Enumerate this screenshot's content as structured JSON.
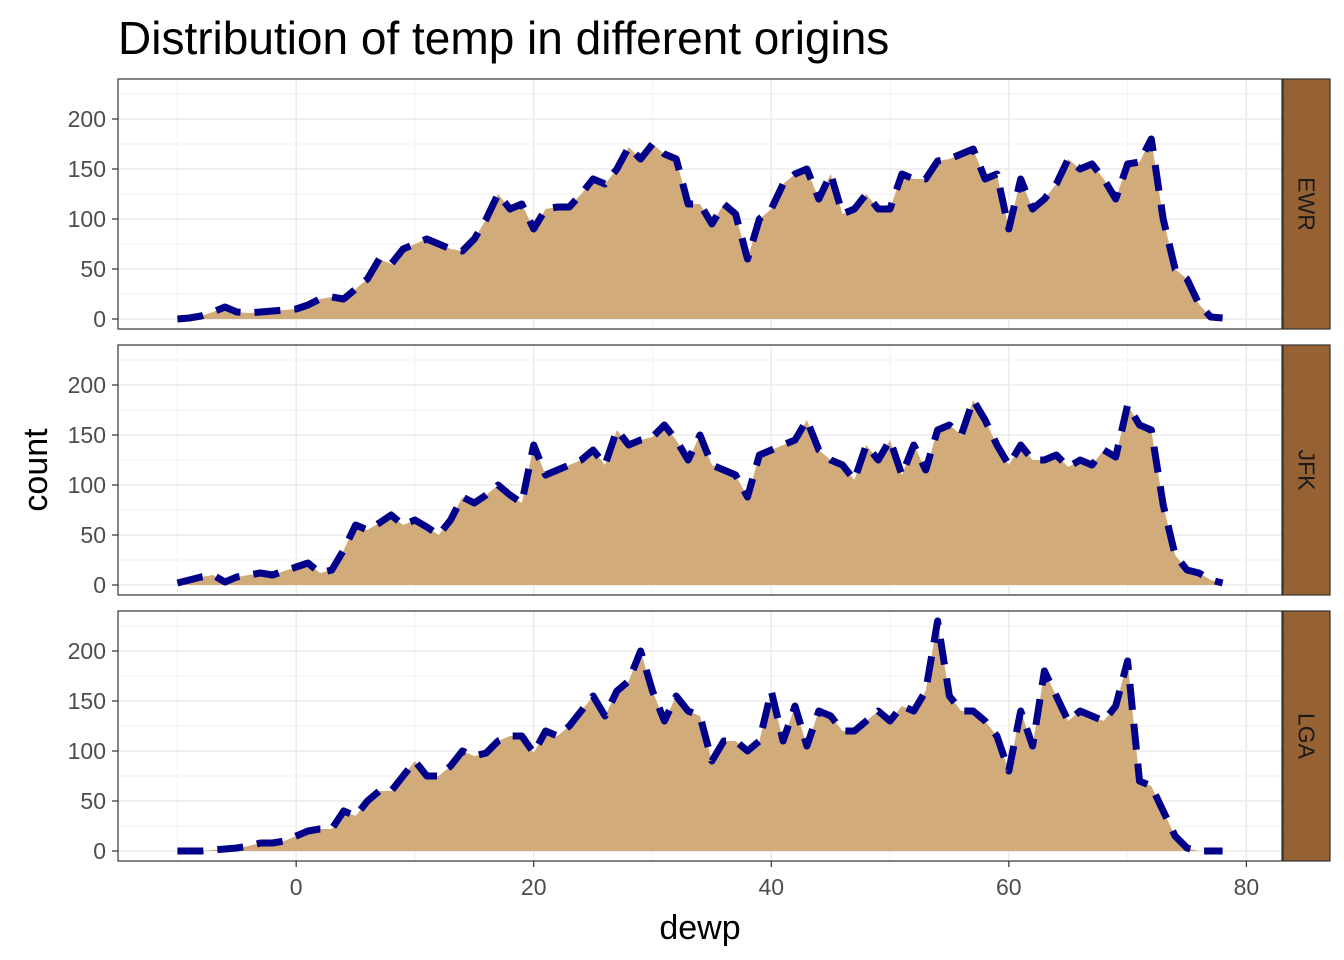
{
  "chart_data": {
    "type": "area",
    "title": "Distribution of temp in different origins",
    "xlabel": "dewp",
    "ylabel": "count",
    "xlim": [
      -15,
      83
    ],
    "ylim": [
      -10,
      240
    ],
    "x_ticks": [
      0,
      20,
      40,
      60,
      80
    ],
    "y_ticks": [
      0,
      50,
      100,
      150,
      200
    ],
    "grid": true,
    "facet_strip_color": "#966234",
    "fill_color": "#d2ab7a",
    "line_color": "#00008b",
    "line_style": "dashed",
    "panels": [
      {
        "name": "EWR",
        "x": [
          -10,
          -9,
          -8,
          -7,
          -6,
          -5,
          -4,
          -3,
          -2,
          -1,
          0,
          1,
          2,
          3,
          4,
          5,
          6,
          7,
          8,
          9,
          10,
          11,
          12,
          13,
          14,
          15,
          16,
          17,
          18,
          19,
          20,
          21,
          22,
          23,
          24,
          25,
          26,
          27,
          28,
          29,
          30,
          31,
          32,
          33,
          34,
          35,
          36,
          37,
          38,
          39,
          40,
          41,
          42,
          43,
          44,
          45,
          46,
          47,
          48,
          49,
          50,
          51,
          52,
          53,
          54,
          55,
          56,
          57,
          58,
          59,
          60,
          61,
          62,
          63,
          64,
          65,
          66,
          67,
          68,
          69,
          70,
          71,
          72,
          73,
          74,
          75,
          76,
          77,
          78
        ],
        "values": [
          0,
          1,
          3,
          7,
          12,
          7,
          6,
          7,
          8,
          9,
          10,
          14,
          20,
          22,
          20,
          30,
          40,
          60,
          55,
          70,
          75,
          80,
          75,
          70,
          68,
          80,
          100,
          125,
          110,
          115,
          90,
          110,
          112,
          112,
          125,
          140,
          135,
          150,
          172,
          160,
          175,
          165,
          160,
          115,
          115,
          95,
          115,
          105,
          60,
          100,
          110,
          135,
          145,
          150,
          120,
          145,
          105,
          110,
          125,
          110,
          110,
          145,
          140,
          140,
          158,
          160,
          165,
          170,
          140,
          145,
          90,
          140,
          110,
          120,
          135,
          160,
          150,
          155,
          140,
          120,
          155,
          157,
          180,
          100,
          50,
          40,
          15,
          2,
          1
        ]
      },
      {
        "name": "JFK",
        "x": [
          -10,
          -9,
          -8,
          -7,
          -6,
          -5,
          -4,
          -3,
          -2,
          -1,
          0,
          1,
          2,
          3,
          4,
          5,
          6,
          7,
          8,
          9,
          10,
          11,
          12,
          13,
          14,
          15,
          16,
          17,
          18,
          19,
          20,
          21,
          22,
          23,
          24,
          25,
          26,
          27,
          28,
          29,
          30,
          31,
          32,
          33,
          34,
          35,
          36,
          37,
          38,
          39,
          40,
          41,
          42,
          43,
          44,
          45,
          46,
          47,
          48,
          49,
          50,
          51,
          52,
          53,
          54,
          55,
          56,
          57,
          58,
          59,
          60,
          61,
          62,
          63,
          64,
          65,
          66,
          67,
          68,
          69,
          70,
          71,
          72,
          73,
          74,
          75,
          76,
          77,
          78
        ],
        "values": [
          2,
          5,
          8,
          10,
          3,
          8,
          10,
          12,
          10,
          14,
          18,
          22,
          12,
          15,
          35,
          60,
          55,
          62,
          70,
          60,
          65,
          58,
          50,
          65,
          88,
          82,
          90,
          100,
          90,
          82,
          140,
          110,
          115,
          120,
          125,
          135,
          120,
          155,
          140,
          145,
          148,
          160,
          145,
          125,
          150,
          120,
          115,
          110,
          88,
          130,
          135,
          140,
          145,
          165,
          135,
          125,
          120,
          105,
          140,
          125,
          145,
          110,
          140,
          115,
          155,
          160,
          150,
          185,
          165,
          140,
          120,
          140,
          125,
          125,
          130,
          118,
          125,
          120,
          135,
          128,
          180,
          160,
          155,
          80,
          30,
          15,
          12,
          5,
          2
        ]
      },
      {
        "name": "LGA",
        "x": [
          -10,
          -9,
          -8,
          -7,
          -6,
          -5,
          -4,
          -3,
          -2,
          -1,
          0,
          1,
          2,
          3,
          4,
          5,
          6,
          7,
          8,
          9,
          10,
          11,
          12,
          13,
          14,
          15,
          16,
          17,
          18,
          19,
          20,
          21,
          22,
          23,
          24,
          25,
          26,
          27,
          28,
          29,
          30,
          31,
          32,
          33,
          34,
          35,
          36,
          37,
          38,
          39,
          40,
          41,
          42,
          43,
          44,
          45,
          46,
          47,
          48,
          49,
          50,
          51,
          52,
          53,
          54,
          55,
          56,
          57,
          58,
          59,
          60,
          61,
          62,
          63,
          64,
          65,
          66,
          67,
          68,
          69,
          70,
          71,
          72,
          73,
          74,
          75,
          76,
          77,
          78
        ],
        "values": [
          0,
          0,
          0,
          1,
          2,
          3,
          5,
          8,
          8,
          10,
          15,
          20,
          22,
          22,
          40,
          35,
          50,
          60,
          60,
          75,
          90,
          75,
          75,
          85,
          100,
          95,
          98,
          110,
          115,
          115,
          98,
          120,
          115,
          125,
          140,
          155,
          135,
          160,
          170,
          200,
          160,
          130,
          155,
          140,
          135,
          90,
          110,
          110,
          100,
          110,
          160,
          110,
          145,
          105,
          140,
          135,
          120,
          120,
          130,
          140,
          130,
          145,
          140,
          160,
          230,
          155,
          140,
          140,
          130,
          115,
          80,
          140,
          105,
          180,
          155,
          130,
          140,
          135,
          130,
          145,
          190,
          70,
          65,
          40,
          15,
          3,
          0,
          0,
          0
        ]
      }
    ]
  }
}
